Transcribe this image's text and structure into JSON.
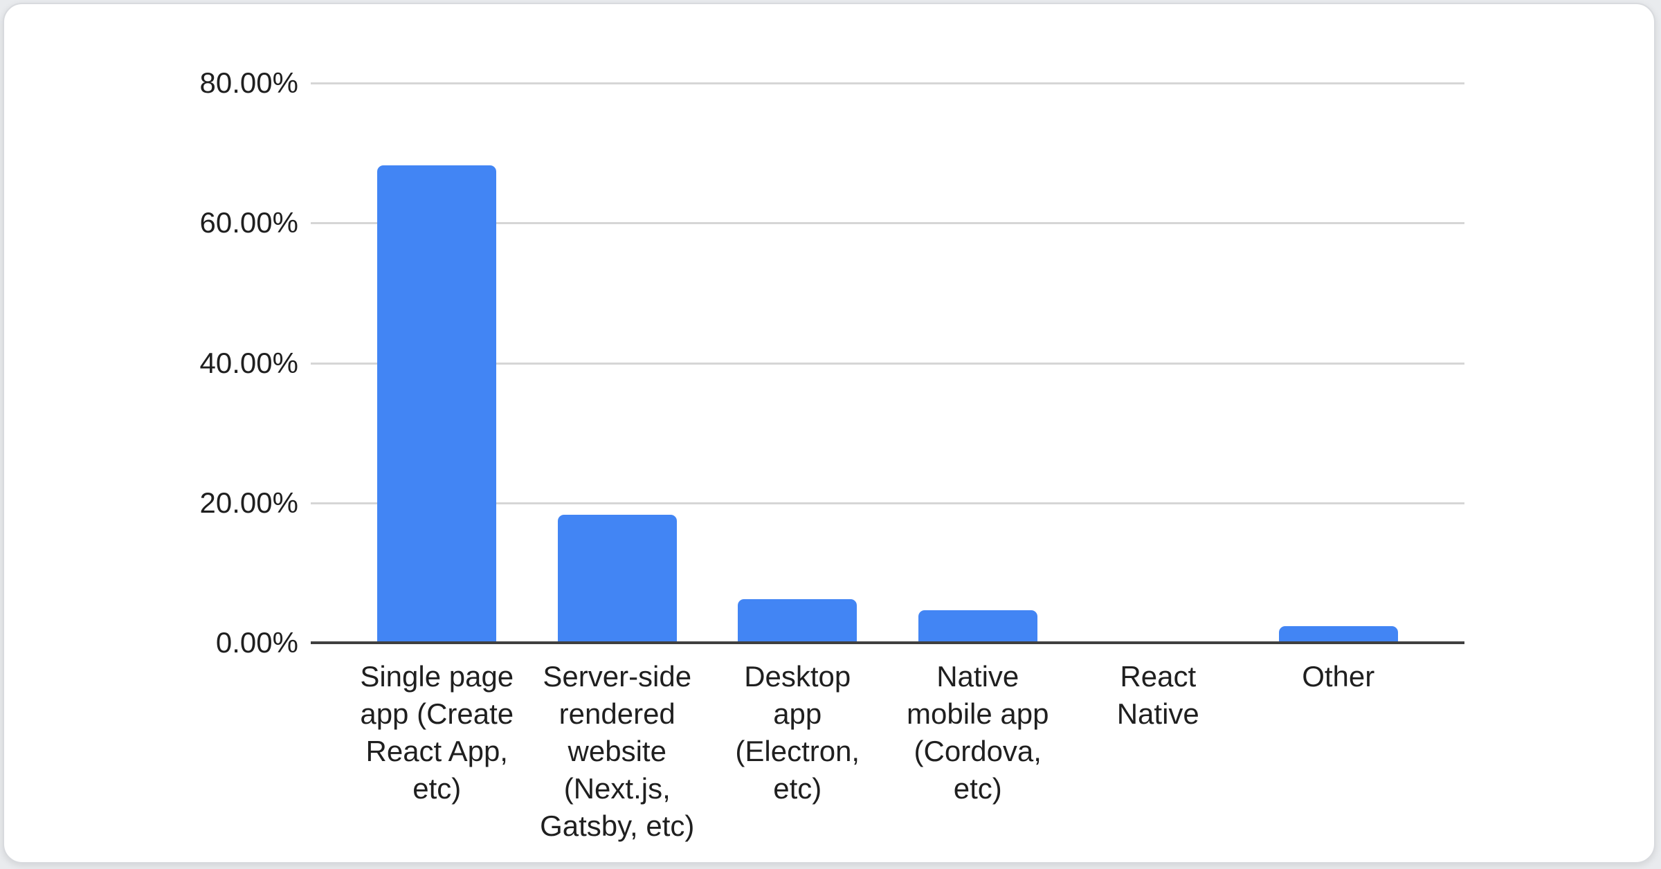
{
  "chart_data": {
    "type": "bar",
    "title": "",
    "xlabel": "",
    "ylabel": "",
    "categories": [
      "Single page app (Create React App, etc)",
      "Server-side rendered website (Next.js, Gatsby, etc)",
      "Desktop app (Electron, etc)",
      "Native mobile app (Cordova, etc)",
      "React Native",
      "Other"
    ],
    "category_label_lines": [
      [
        "Single page",
        "app (Create",
        "React App,",
        "etc)"
      ],
      [
        "Server-side",
        "rendered",
        "website",
        "(Next.js,",
        "Gatsby, etc)"
      ],
      [
        "Desktop",
        "app",
        "(Electron,",
        "etc)"
      ],
      [
        "Native",
        "mobile app",
        "(Cordova,",
        "etc)"
      ],
      [
        "React",
        "Native"
      ],
      [
        "Other"
      ]
    ],
    "values": [
      68.2,
      18.3,
      6.2,
      4.6,
      0,
      2.4
    ],
    "ylim": [
      0,
      80
    ],
    "yticks": {
      "values": [
        80,
        60,
        40,
        20,
        0
      ],
      "labels": [
        "80.00%",
        "60.00%",
        "40.00%",
        "20.00%",
        "0.00%"
      ]
    },
    "grid": true,
    "legend": "none"
  },
  "colors": {
    "bar_color": "#4285f4",
    "grid_color": "#d6d6d6",
    "axis_color": "#404040",
    "text_color": "#1f1f1f",
    "card_border": "#d8dade",
    "card_background": "#ffffff"
  }
}
